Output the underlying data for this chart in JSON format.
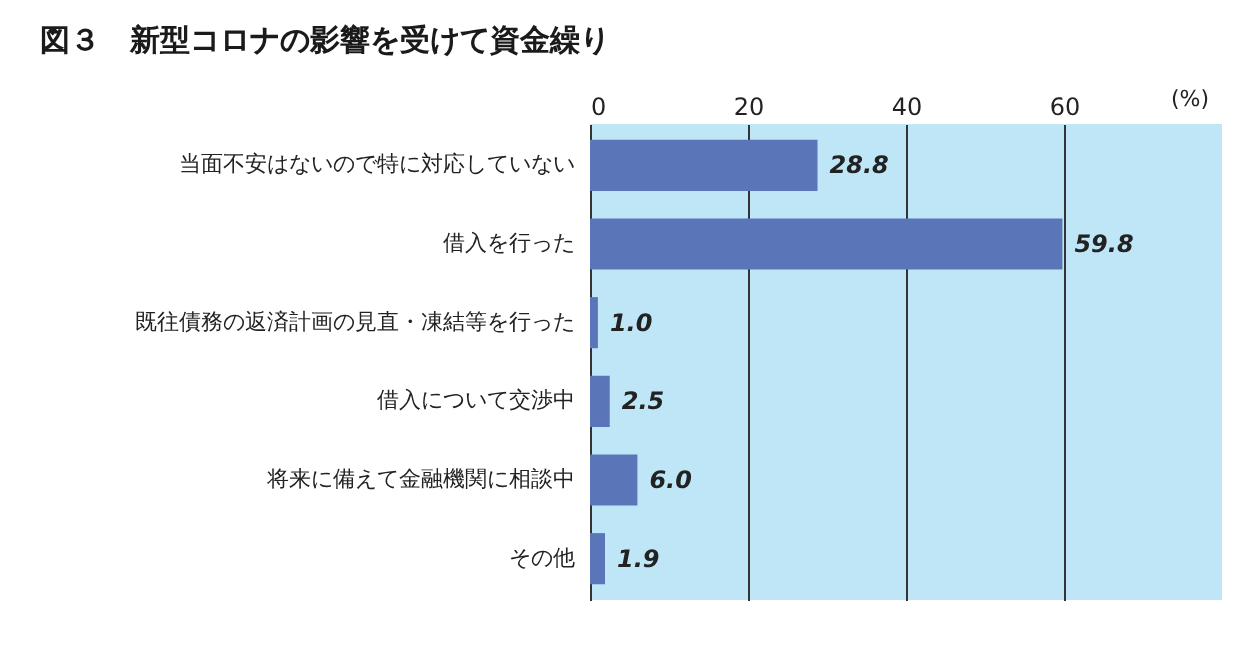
{
  "chart_data": {
    "type": "bar",
    "orientation": "horizontal",
    "title": "図３　新型コロナの影響を受けて資金繰り",
    "xlabel": "(%)",
    "categories": [
      "当面不安はないので特に対応していない",
      "借入を行った",
      "既往債務の返済計画の見直・凍結等を行った",
      "借入について交渉中",
      "将来に備えて金融機関に相談中",
      "その他"
    ],
    "values": [
      28.8,
      59.8,
      1.0,
      2.5,
      6.0,
      1.9
    ],
    "color": "#5b76b8",
    "xlim": [
      0,
      80
    ],
    "xticks": [
      0,
      20,
      40,
      60
    ],
    "grid": "x",
    "value_labels": [
      "28.8",
      "59.8",
      "1.0",
      "2.5",
      "6.0",
      "1.9"
    ]
  }
}
